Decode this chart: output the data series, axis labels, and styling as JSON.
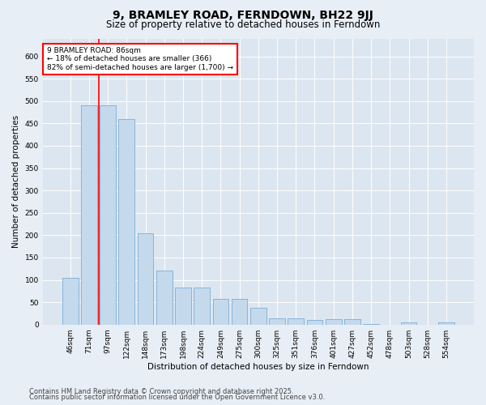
{
  "title": "9, BRAMLEY ROAD, FERNDOWN, BH22 9JJ",
  "subtitle": "Size of property relative to detached houses in Ferndown",
  "xlabel": "Distribution of detached houses by size in Ferndown",
  "ylabel": "Number of detached properties",
  "footer1": "Contains HM Land Registry data © Crown copyright and database right 2025.",
  "footer2": "Contains public sector information licensed under the Open Government Licence v3.0.",
  "categories": [
    "46sqm",
    "71sqm",
    "97sqm",
    "122sqm",
    "148sqm",
    "173sqm",
    "198sqm",
    "224sqm",
    "249sqm",
    "275sqm",
    "300sqm",
    "325sqm",
    "351sqm",
    "376sqm",
    "401sqm",
    "427sqm",
    "452sqm",
    "478sqm",
    "503sqm",
    "528sqm",
    "554sqm"
  ],
  "values": [
    105,
    490,
    490,
    460,
    205,
    120,
    82,
    82,
    57,
    57,
    38,
    14,
    14,
    10,
    12,
    12,
    2,
    0,
    5,
    0,
    5
  ],
  "bar_color": "#c5d9ed",
  "bar_edge_color": "#7aadd4",
  "red_line_x": 1.5,
  "annotation_text": "9 BRAMLEY ROAD: 86sqm\n← 18% of detached houses are smaller (366)\n82% of semi-detached houses are larger (1,700) →",
  "annotation_box_color": "white",
  "annotation_box_edge": "red",
  "ylim": [
    0,
    640
  ],
  "yticks": [
    0,
    50,
    100,
    150,
    200,
    250,
    300,
    350,
    400,
    450,
    500,
    550,
    600
  ],
  "bg_color": "#e8eef5",
  "plot_bg_color": "#dce6f0",
  "title_fontsize": 10,
  "subtitle_fontsize": 8.5,
  "axis_label_fontsize": 7.5,
  "tick_fontsize": 6.5,
  "annotation_fontsize": 6.5,
  "footer_fontsize": 6.0
}
